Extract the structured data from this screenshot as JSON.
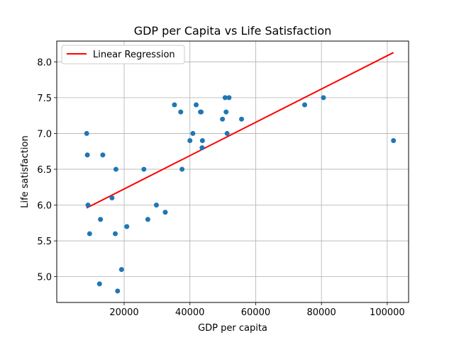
{
  "chart_data": {
    "type": "scatter",
    "title": "GDP per Capita vs Life Satisfaction",
    "xlabel": "GDP per capita",
    "ylabel": "Life satisfaction",
    "xlim": [
      -500,
      106500
    ],
    "ylim": [
      4.64,
      8.29
    ],
    "x_ticks": [
      20000,
      40000,
      60000,
      80000,
      100000
    ],
    "x_tick_labels": [
      "20000",
      "40000",
      "60000",
      "80000",
      "100000"
    ],
    "y_ticks": [
      5.0,
      5.5,
      6.0,
      6.5,
      7.0,
      7.5,
      8.0
    ],
    "y_tick_labels": [
      "5.0",
      "5.5",
      "6.0",
      "6.5",
      "7.0",
      "7.5",
      "8.0"
    ],
    "grid": true,
    "legend_position": "top-left",
    "colors": {
      "points": "#1f77b4",
      "regression": "#ff0000"
    },
    "series": [
      {
        "kind": "scatter",
        "x": [
          8600,
          8800,
          9000,
          9500,
          12500,
          12800,
          13500,
          16300,
          17300,
          17500,
          18000,
          19200,
          20800,
          26000,
          27200,
          29800,
          32500,
          35300,
          37200,
          37600,
          40000,
          40900,
          41900,
          43200,
          43400,
          43700,
          43800,
          49900,
          50700,
          51000,
          51300,
          51900,
          55700,
          74900,
          80600,
          101900
        ],
        "y": [
          7.0,
          6.7,
          6.0,
          5.6,
          4.9,
          5.8,
          6.7,
          6.1,
          5.6,
          6.5,
          4.8,
          5.1,
          5.7,
          6.5,
          5.8,
          6.0,
          5.9,
          7.4,
          7.3,
          6.5,
          6.9,
          7.0,
          7.4,
          7.3,
          7.3,
          6.8,
          6.9,
          7.2,
          7.5,
          7.3,
          7.0,
          7.5,
          7.2,
          7.4,
          7.5,
          6.9
        ]
      },
      {
        "kind": "line",
        "name": "Linear Regression",
        "x": [
          8600,
          101900
        ],
        "y": [
          5.96,
          8.13
        ]
      }
    ]
  }
}
